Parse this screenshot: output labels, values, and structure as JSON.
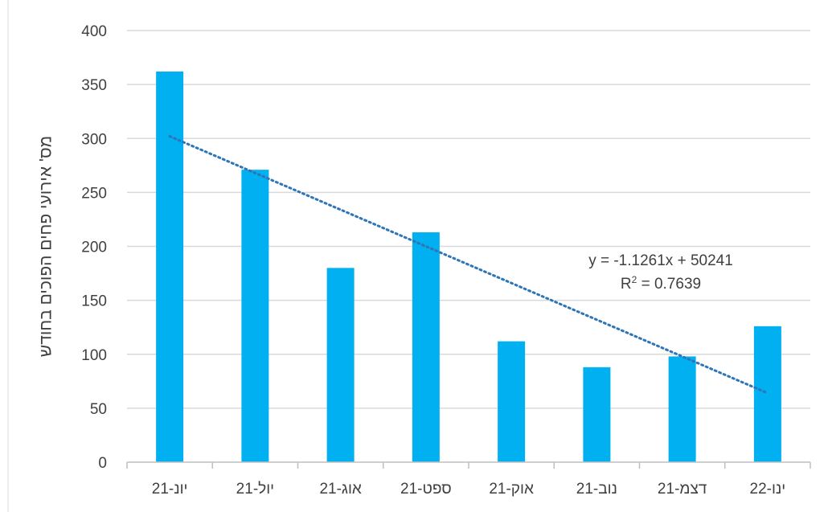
{
  "chart_data": {
    "type": "bar",
    "categories": [
      "יונ-21",
      "יול-21",
      "אוג-21",
      "ספט-21",
      "אוק-21",
      "נוב-21",
      "דצמ-21",
      "ינו-22"
    ],
    "series": [
      {
        "values": [
          362,
          271,
          180,
          213,
          112,
          88,
          98,
          126
        ]
      }
    ],
    "ylabel": "מס' אירועי פחים הפוכים בחודש",
    "xlabel": "",
    "ylim": [
      0,
      400
    ],
    "yticks": [
      "0",
      "50",
      "100",
      "150",
      "200",
      "250",
      "300",
      "350",
      "400"
    ],
    "grid": true,
    "bar_color": "#00b0f0",
    "trendline": {
      "type": "linear",
      "color": "#2e75b6",
      "start_value": 302,
      "end_value": 64,
      "equation": "y = -1.1261x + 50241",
      "r2_prefix": "R",
      "r2_exponent": "2",
      "r2_rest": " = 0.7639"
    }
  }
}
